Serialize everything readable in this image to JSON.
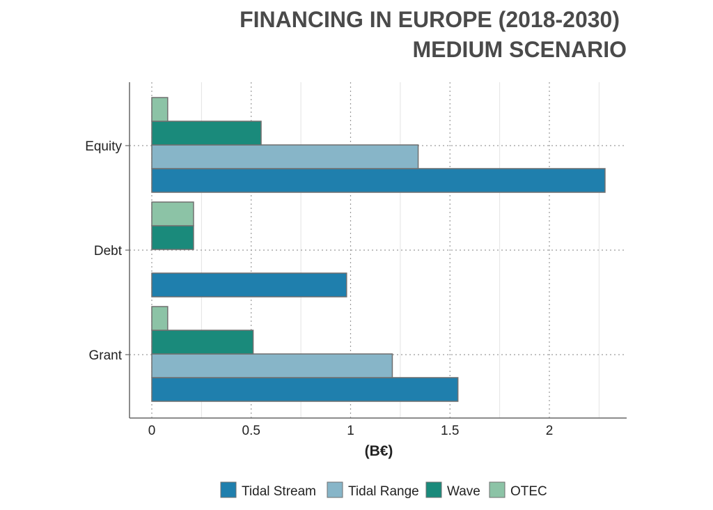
{
  "chart_data": {
    "type": "bar",
    "orientation": "horizontal",
    "title": "FINANCING IN EUROPE (2018-2030)",
    "subtitle": "MEDIUM SCENARIO",
    "xlabel": "(B€)",
    "ylabel": "",
    "categories": [
      "Equity",
      "Debt",
      "Grant"
    ],
    "series": [
      {
        "name": "Tidal Stream",
        "color": "#1f7fad",
        "values": [
          2.28,
          0.98,
          1.54
        ]
      },
      {
        "name": "Tidal Range",
        "color": "#87b5c8",
        "values": [
          1.34,
          0,
          1.21
        ]
      },
      {
        "name": "Wave",
        "color": "#1a8a7b",
        "values": [
          0.55,
          0.21,
          0.51
        ]
      },
      {
        "name": "OTEC",
        "color": "#8cc3a6",
        "values": [
          0.08,
          0.21,
          0.08
        ]
      }
    ],
    "xlim": [
      0,
      2.25
    ],
    "xticks": [
      0,
      0.5,
      1,
      1.5,
      2
    ],
    "xtick_labels": [
      "0",
      "0.5",
      "1",
      "1.5",
      "2"
    ],
    "grid": true,
    "legend_position": "bottom"
  }
}
